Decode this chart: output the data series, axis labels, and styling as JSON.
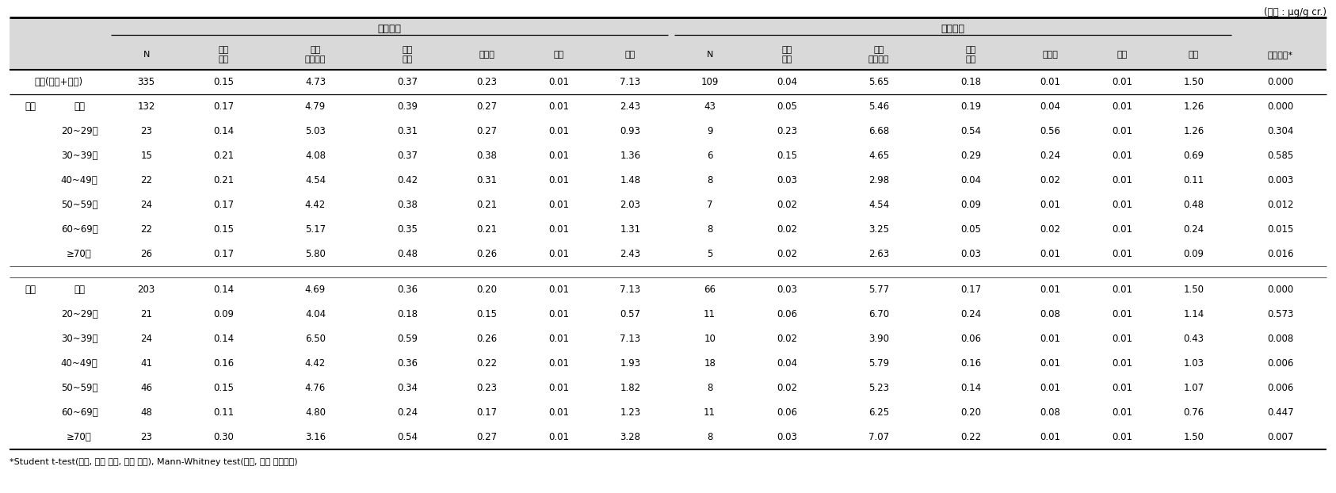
{
  "unit_text": "(단위 : μg/g cr.)",
  "nochul_label": "노출지역",
  "daejo_label": "대조지역",
  "col_headers": [
    "N",
    "기하\n평균",
    "기하\n표준편차",
    "산술\n평균",
    "중위수",
    "최소",
    "최대",
    "N",
    "기하\n평균",
    "기하\n표준편차",
    "산술\n평균",
    "중위수",
    "최소",
    "최대",
    "유의수준*"
  ],
  "row_cat1": [
    "전체(남자+여자)",
    "남자",
    "",
    "",
    "",
    "",
    "",
    "",
    "",
    "여자",
    "",
    "",
    "",
    "",
    "",
    ""
  ],
  "row_cat2": [
    "",
    "전체",
    "20~29세",
    "30~39세",
    "40~49세",
    "50~59세",
    "60~69세",
    "≥70세",
    "",
    "전체",
    "20~29세",
    "30~39세",
    "40~49세",
    "50~59세",
    "60~69세",
    "≥70세"
  ],
  "data": [
    [
      335,
      0.15,
      4.73,
      0.37,
      0.23,
      0.01,
      7.13,
      109,
      0.04,
      5.65,
      0.18,
      0.01,
      0.01,
      1.5,
      0.0
    ],
    [
      132,
      0.17,
      4.79,
      0.39,
      0.27,
      0.01,
      2.43,
      43,
      0.05,
      5.46,
      0.19,
      0.04,
      0.01,
      1.26,
      0.0
    ],
    [
      23,
      0.14,
      5.03,
      0.31,
      0.27,
      0.01,
      0.93,
      9,
      0.23,
      6.68,
      0.54,
      0.56,
      0.01,
      1.26,
      0.304
    ],
    [
      15,
      0.21,
      4.08,
      0.37,
      0.38,
      0.01,
      1.36,
      6,
      0.15,
      4.65,
      0.29,
      0.24,
      0.01,
      0.69,
      0.585
    ],
    [
      22,
      0.21,
      4.54,
      0.42,
      0.31,
      0.01,
      1.48,
      8,
      0.03,
      2.98,
      0.04,
      0.02,
      0.01,
      0.11,
      0.003
    ],
    [
      24,
      0.17,
      4.42,
      0.38,
      0.21,
      0.01,
      2.03,
      7,
      0.02,
      4.54,
      0.09,
      0.01,
      0.01,
      0.48,
      0.012
    ],
    [
      22,
      0.15,
      5.17,
      0.35,
      0.21,
      0.01,
      1.31,
      8,
      0.02,
      3.25,
      0.05,
      0.02,
      0.01,
      0.24,
      0.015
    ],
    [
      26,
      0.17,
      5.8,
      0.48,
      0.26,
      0.01,
      2.43,
      5,
      0.02,
      2.63,
      0.03,
      0.01,
      0.01,
      0.09,
      0.016
    ],
    [
      null,
      null,
      null,
      null,
      null,
      null,
      null,
      null,
      null,
      null,
      null,
      null,
      null,
      null,
      null
    ],
    [
      203,
      0.14,
      4.69,
      0.36,
      0.2,
      0.01,
      7.13,
      66,
      0.03,
      5.77,
      0.17,
      0.01,
      0.01,
      1.5,
      0.0
    ],
    [
      21,
      0.09,
      4.04,
      0.18,
      0.15,
      0.01,
      0.57,
      11,
      0.06,
      6.7,
      0.24,
      0.08,
      0.01,
      1.14,
      0.573
    ],
    [
      24,
      0.14,
      6.5,
      0.59,
      0.26,
      0.01,
      7.13,
      10,
      0.02,
      3.9,
      0.06,
      0.01,
      0.01,
      0.43,
      0.008
    ],
    [
      41,
      0.16,
      4.42,
      0.36,
      0.22,
      0.01,
      1.93,
      18,
      0.04,
      5.79,
      0.16,
      0.01,
      0.01,
      1.03,
      0.006
    ],
    [
      46,
      0.15,
      4.76,
      0.34,
      0.23,
      0.01,
      1.82,
      8,
      0.02,
      5.23,
      0.14,
      0.01,
      0.01,
      1.07,
      0.006
    ],
    [
      48,
      0.11,
      4.8,
      0.24,
      0.17,
      0.01,
      1.23,
      11,
      0.06,
      6.25,
      0.2,
      0.08,
      0.01,
      0.76,
      0.447
    ],
    [
      23,
      0.3,
      3.16,
      0.54,
      0.27,
      0.01,
      3.28,
      8,
      0.03,
      7.07,
      0.22,
      0.01,
      0.01,
      1.5,
      0.007
    ]
  ],
  "footnote": "*Student t-test(전체, 남자 전체, 여자 전체), Mann-Whitney test(남자, 여자 연령군별)",
  "header_bg": "#d9d9d9",
  "white": "#ffffff",
  "black": "#000000"
}
